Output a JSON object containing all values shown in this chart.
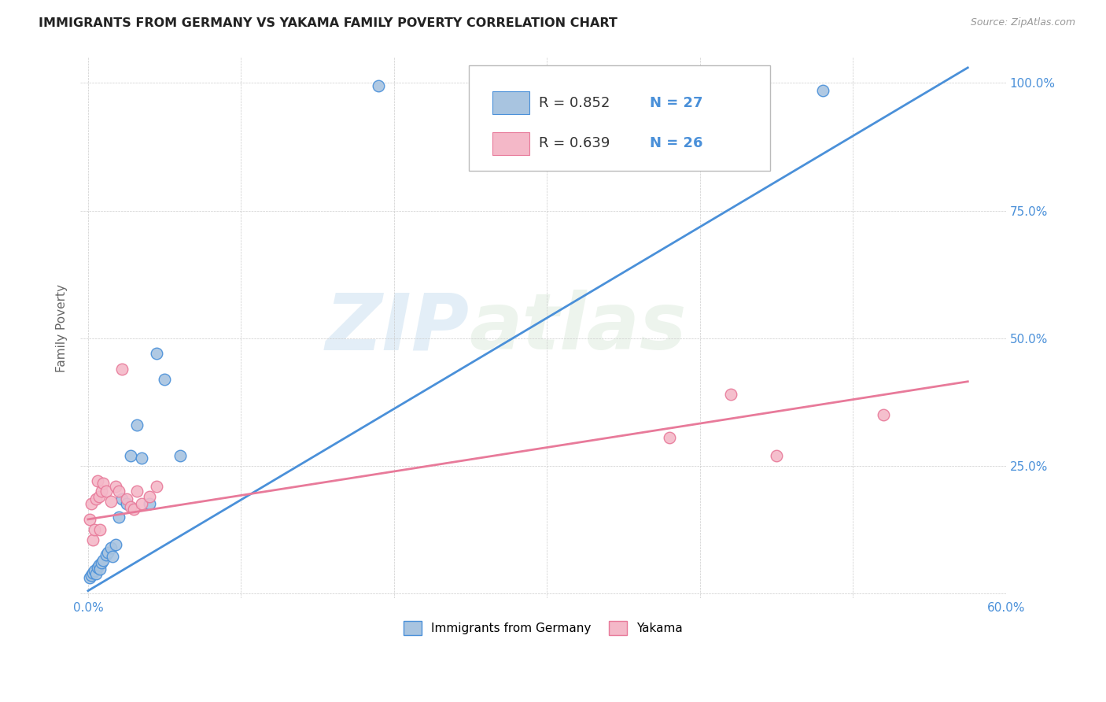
{
  "title": "IMMIGRANTS FROM GERMANY VS YAKAMA FAMILY POVERTY CORRELATION CHART",
  "source": "Source: ZipAtlas.com",
  "ylabel": "Family Poverty",
  "blue_R": 0.852,
  "blue_N": 27,
  "pink_R": 0.639,
  "pink_N": 26,
  "blue_color": "#a8c4e0",
  "pink_color": "#f4b8c8",
  "blue_line_color": "#4a90d9",
  "pink_line_color": "#e87a9a",
  "legend_label_blue": "Immigrants from Germany",
  "legend_label_pink": "Yakama",
  "watermark_zip": "ZIP",
  "watermark_atlas": "atlas",
  "xlim": [
    0.0,
    0.6
  ],
  "ylim": [
    0.0,
    1.05
  ],
  "x_tick_positions": [
    0.0,
    0.1,
    0.2,
    0.3,
    0.4,
    0.5,
    0.6
  ],
  "x_tick_labels": [
    "0.0%",
    "",
    "",
    "",
    "",
    "",
    "60.0%"
  ],
  "y_tick_positions": [
    0.0,
    0.25,
    0.5,
    0.75,
    1.0
  ],
  "y_tick_labels_right": [
    "",
    "25.0%",
    "50.0%",
    "75.0%",
    "100.0%"
  ],
  "blue_scatter_x": [
    0.001,
    0.002,
    0.003,
    0.004,
    0.005,
    0.006,
    0.007,
    0.008,
    0.009,
    0.01,
    0.012,
    0.013,
    0.015,
    0.016,
    0.018,
    0.02,
    0.022,
    0.025,
    0.028,
    0.032,
    0.035,
    0.04,
    0.045,
    0.05,
    0.06,
    0.19,
    0.48
  ],
  "blue_scatter_y": [
    0.03,
    0.035,
    0.04,
    0.045,
    0.038,
    0.05,
    0.055,
    0.048,
    0.06,
    0.065,
    0.075,
    0.08,
    0.09,
    0.072,
    0.095,
    0.15,
    0.185,
    0.175,
    0.27,
    0.33,
    0.265,
    0.175,
    0.47,
    0.42,
    0.27,
    0.995,
    0.985
  ],
  "pink_scatter_x": [
    0.001,
    0.002,
    0.003,
    0.004,
    0.005,
    0.006,
    0.007,
    0.008,
    0.009,
    0.01,
    0.012,
    0.015,
    0.018,
    0.02,
    0.022,
    0.025,
    0.028,
    0.03,
    0.032,
    0.035,
    0.04,
    0.045,
    0.38,
    0.42,
    0.45,
    0.52
  ],
  "pink_scatter_y": [
    0.145,
    0.175,
    0.105,
    0.125,
    0.185,
    0.22,
    0.19,
    0.125,
    0.2,
    0.215,
    0.2,
    0.18,
    0.21,
    0.2,
    0.44,
    0.185,
    0.17,
    0.165,
    0.2,
    0.175,
    0.19,
    0.21,
    0.305,
    0.39,
    0.27,
    0.35
  ],
  "blue_line_x": [
    0.0,
    0.575
  ],
  "blue_line_y": [
    0.005,
    1.03
  ],
  "pink_line_x": [
    0.0,
    0.575
  ],
  "pink_line_y": [
    0.145,
    0.415
  ]
}
